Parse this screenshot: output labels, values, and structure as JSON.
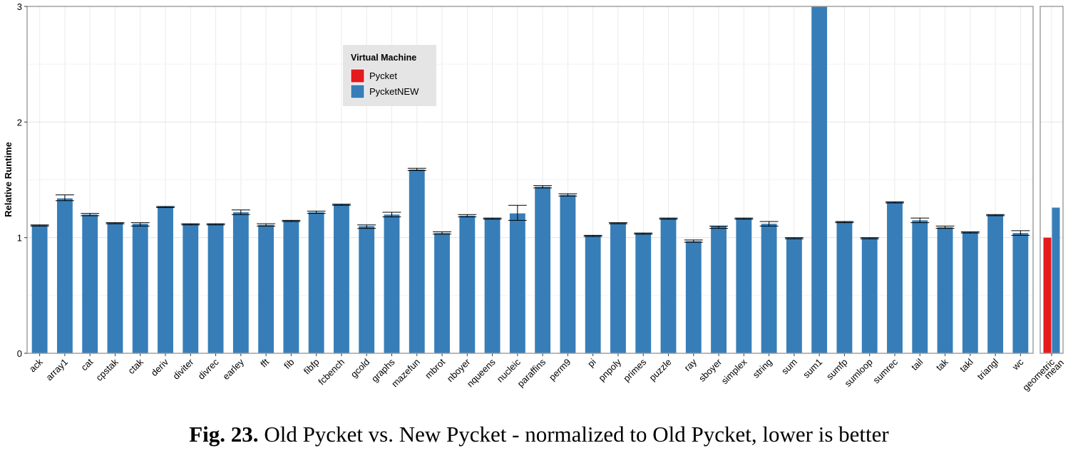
{
  "caption": {
    "label": "Fig. 23.",
    "text": "Old Pycket vs. New Pycket - normalized to Old Pycket, lower is better"
  },
  "chart_data": [
    {
      "type": "bar",
      "ylabel": "Relative Runtime",
      "ylim": [
        0,
        3
      ],
      "yticks": [
        0,
        1,
        2,
        3
      ],
      "grid": true,
      "legend": {
        "title": "Virtual Machine",
        "placement": "top-center",
        "entries": [
          {
            "name": "Pycket",
            "color": "#e41a1c"
          },
          {
            "name": "PycketNEW",
            "color": "#377eb8"
          }
        ]
      },
      "categories": [
        "ack",
        "array1",
        "cat",
        "cpstak",
        "ctak",
        "deriv",
        "diviter",
        "divrec",
        "earley",
        "fft",
        "fib",
        "fibfp",
        "fcbench",
        "gcold",
        "graphs",
        "mazefun",
        "mbrot",
        "nboyer",
        "nqueens",
        "nucleic",
        "paraffins",
        "perm9",
        "pi",
        "pnpoly",
        "primes",
        "puzzle",
        "ray",
        "sboyer",
        "simplex",
        "string",
        "sum",
        "sum1",
        "sumfp",
        "sumloop",
        "sumrec",
        "tail",
        "tak",
        "takl",
        "triangl",
        "wc"
      ],
      "series": [
        {
          "name": "PycketNEW",
          "color": "#377eb8",
          "values": [
            1.11,
            1.34,
            1.2,
            1.13,
            1.12,
            1.27,
            1.12,
            1.12,
            1.22,
            1.11,
            1.15,
            1.22,
            1.29,
            1.1,
            1.2,
            1.59,
            1.04,
            1.19,
            1.17,
            1.21,
            1.44,
            1.37,
            1.02,
            1.13,
            1.04,
            1.17,
            0.97,
            1.1,
            1.17,
            1.12,
            1.0,
            3.0,
            1.14,
            1.0,
            1.31,
            1.15,
            1.09,
            1.05,
            1.2,
            1.04
          ],
          "err_low": [
            1.1,
            1.32,
            1.19,
            1.12,
            1.1,
            1.26,
            1.11,
            1.11,
            1.2,
            1.1,
            1.14,
            1.21,
            1.28,
            1.08,
            1.18,
            1.58,
            1.03,
            1.18,
            1.16,
            1.15,
            1.43,
            1.36,
            1.01,
            1.12,
            1.03,
            1.16,
            0.96,
            1.08,
            1.16,
            1.1,
            0.99,
            3.0,
            1.13,
            0.99,
            1.3,
            1.13,
            1.08,
            1.04,
            1.19,
            1.02
          ],
          "err_high": [
            1.11,
            1.37,
            1.21,
            1.13,
            1.13,
            1.27,
            1.12,
            1.12,
            1.24,
            1.12,
            1.15,
            1.23,
            1.29,
            1.11,
            1.22,
            1.6,
            1.05,
            1.2,
            1.17,
            1.28,
            1.45,
            1.38,
            1.02,
            1.13,
            1.04,
            1.17,
            0.98,
            1.1,
            1.17,
            1.14,
            1.0,
            3.0,
            1.14,
            1.0,
            1.31,
            1.17,
            1.1,
            1.05,
            1.2,
            1.06
          ]
        }
      ]
    },
    {
      "type": "bar",
      "ylim": [
        0,
        3
      ],
      "categories": [
        "geometric mean"
      ],
      "tick_label": "geometric mean",
      "series": [
        {
          "name": "Pycket",
          "color": "#e41a1c",
          "values": [
            1.0
          ]
        },
        {
          "name": "PycketNEW",
          "color": "#377eb8",
          "values": [
            1.26
          ]
        }
      ]
    }
  ]
}
